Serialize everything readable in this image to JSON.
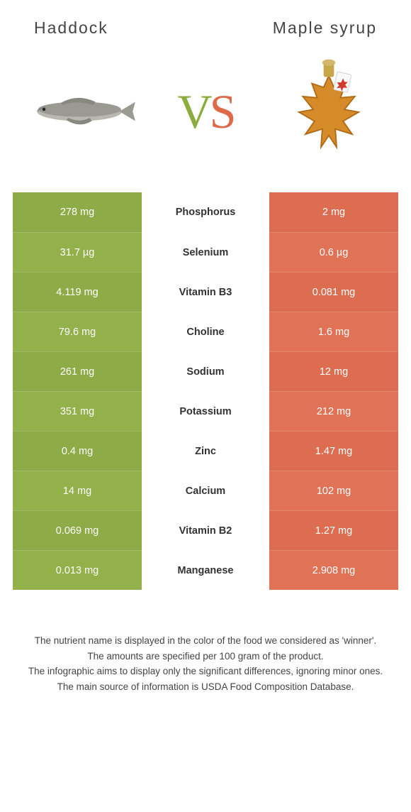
{
  "header": {
    "left_title": "Haddock",
    "right_title": "Maple syrup"
  },
  "vs": {
    "v": "V",
    "s": "S"
  },
  "colors": {
    "green": "#92b14a",
    "green_text": "#7ca23a",
    "orange": "#e07256",
    "orange_text": "#c9583d",
    "background": "#ffffff"
  },
  "table": {
    "rows": [
      {
        "nutrient": "Phosphorus",
        "left": "278 mg",
        "right": "2 mg",
        "winner": "left"
      },
      {
        "nutrient": "Selenium",
        "left": "31.7 µg",
        "right": "0.6 µg",
        "winner": "left"
      },
      {
        "nutrient": "Vitamin B3",
        "left": "4.119 mg",
        "right": "0.081 mg",
        "winner": "left"
      },
      {
        "nutrient": "Choline",
        "left": "79.6 mg",
        "right": "1.6 mg",
        "winner": "left"
      },
      {
        "nutrient": "Sodium",
        "left": "261 mg",
        "right": "12 mg",
        "winner": "left"
      },
      {
        "nutrient": "Potassium",
        "left": "351 mg",
        "right": "212 mg",
        "winner": "left"
      },
      {
        "nutrient": "Zinc",
        "left": "0.4 mg",
        "right": "1.47 mg",
        "winner": "right"
      },
      {
        "nutrient": "Calcium",
        "left": "14 mg",
        "right": "102 mg",
        "winner": "right"
      },
      {
        "nutrient": "Vitamin B2",
        "left": "0.069 mg",
        "right": "1.27 mg",
        "winner": "right"
      },
      {
        "nutrient": "Manganese",
        "left": "0.013 mg",
        "right": "2.908 mg",
        "winner": "right"
      }
    ]
  },
  "footnotes": [
    "The nutrient name is displayed in the color of the food we considered as 'winner'.",
    "The amounts are specified per 100 gram of the product.",
    "The infographic aims to display only the significant differences, ignoring minor ones.",
    "The main source of information is USDA Food Composition Database."
  ]
}
